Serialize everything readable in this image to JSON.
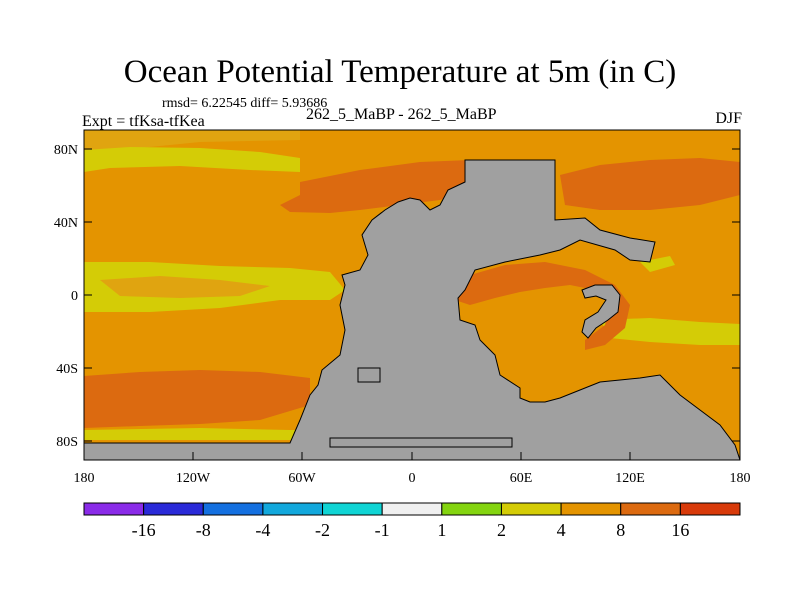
{
  "title": "Ocean Potential Temperature at 5m (in C)",
  "stats": "rmsd= 6.22545 diff= 5.93686",
  "expt": "Expt = tfKsa-tfKea",
  "subtitle": "262_5_MaBP - 262_5_MaBP",
  "season": "DJF",
  "colors": {
    "land": "#a0a0a0",
    "level_1_2": "#d4cc06",
    "level_2_4": "#e0a410",
    "level_4_8": "#e49400",
    "level_8_16": "#dc6a10"
  },
  "map": {
    "x_ticks": [
      "180",
      "120W",
      "60W",
      "0",
      "60E",
      "120E",
      "180"
    ],
    "y_ticks": [
      "80N",
      "40N",
      "0",
      "40S",
      "80S"
    ]
  },
  "colorbar": {
    "colors": [
      "#8a2be8",
      "#2a2ad8",
      "#1470e0",
      "#12a8dc",
      "#10d4d4",
      "#f0f0f0",
      "#84d410",
      "#d4cc06",
      "#e49400",
      "#dc6a10",
      "#d83a0a"
    ],
    "labels": [
      "-16",
      "-8",
      "-4",
      "-2",
      "-1",
      "1",
      "2",
      "4",
      "8",
      "16"
    ]
  }
}
